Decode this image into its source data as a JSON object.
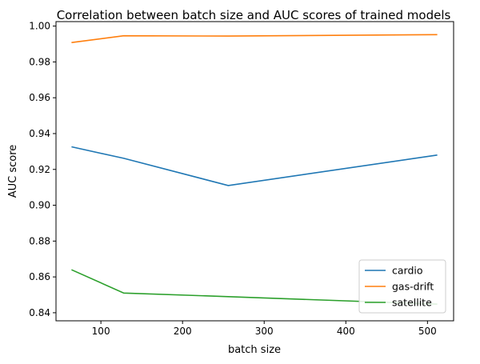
{
  "chart_data": {
    "type": "line",
    "title": "Correlation between batch size and AUC scores of trained models",
    "xlabel": "batch size",
    "ylabel": "AUC score",
    "xlim": [
      45,
      532
    ],
    "ylim": [
      0.8355,
      1.0025
    ],
    "xticks": [
      100,
      200,
      300,
      400,
      500
    ],
    "xtick_labels": [
      "100",
      "200",
      "300",
      "400",
      "500"
    ],
    "yticks": [
      0.84,
      0.86,
      0.88,
      0.9,
      0.92,
      0.94,
      0.96,
      0.98,
      1.0
    ],
    "ytick_labels": [
      "0.84",
      "0.86",
      "0.88",
      "0.90",
      "0.92",
      "0.94",
      "0.96",
      "0.98",
      "1.00"
    ],
    "grid": false,
    "legend_position": "lower-right",
    "x": [
      64,
      128,
      256,
      512
    ],
    "series": [
      {
        "name": "cardio",
        "color": "#1f77b4",
        "values": [
          0.9326,
          0.9262,
          0.911,
          0.928
        ]
      },
      {
        "name": "gas-drift",
        "color": "#ff7f0e",
        "values": [
          0.9908,
          0.9946,
          0.9944,
          0.9952
        ]
      },
      {
        "name": "satellite",
        "color": "#2ca02c",
        "values": [
          0.864,
          0.851,
          0.849,
          0.8448
        ]
      }
    ]
  }
}
